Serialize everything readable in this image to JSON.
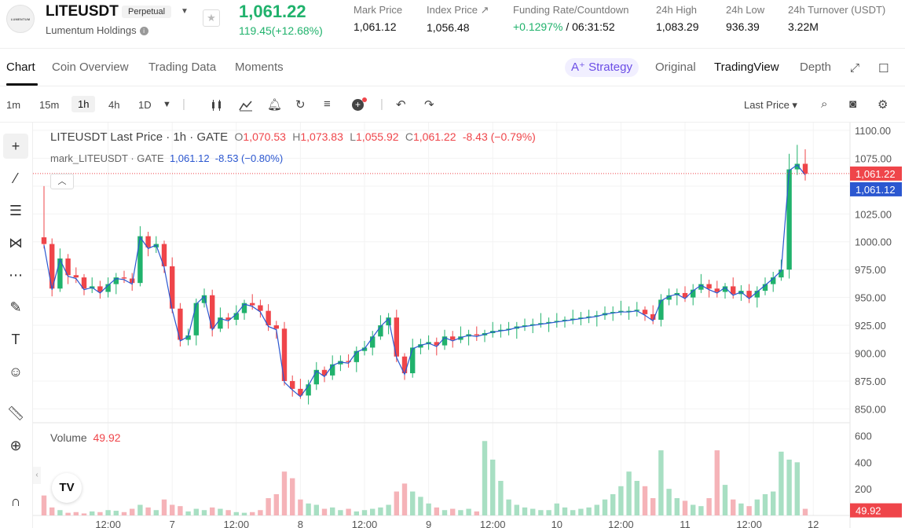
{
  "header": {
    "logo_text": "LUMENTUM",
    "symbol": "LITEUSDT",
    "badge": "Perpetual",
    "company": "Lumentum Holdings",
    "last_price": "1,061.22",
    "change": "119.45(+12.68%)",
    "stats": [
      {
        "label": "Mark Price",
        "value": "1,061.12"
      },
      {
        "label": "Index Price ↗",
        "value": "1,056.48"
      },
      {
        "label": "Funding Rate/Countdown",
        "value_green": "+0.1297%",
        "value": " / 06:31:52"
      },
      {
        "label": "24h High",
        "value": "1,083.29"
      },
      {
        "label": "24h Low",
        "value": "936.39"
      },
      {
        "label": "24h Turnover (USDT)",
        "value": "3.22M"
      }
    ]
  },
  "tabs": {
    "left": [
      "Chart",
      "Coin Overview",
      "Trading Data",
      "Moments"
    ],
    "strategy": "A⁺ Strategy",
    "right": [
      "Original",
      "TradingView",
      "Depth"
    ]
  },
  "toolbar": {
    "timeframes": [
      "1m",
      "15m",
      "1h",
      "4h",
      "1D"
    ],
    "price_select": "Last Price ▾"
  },
  "legend": {
    "title": "LITEUSDT Last Price · 1h · GATE",
    "o_label": "O",
    "o": "1,070.53",
    "h_label": "H",
    "h": "1,073.83",
    "l_label": "L",
    "l": "1,055.92",
    "c_label": "C",
    "c": "1,061.22",
    "chg": "-8.43 (−0.79%)",
    "mark_title": "mark_LITEUSDT · GATE",
    "mark_value": "1,061.12",
    "mark_chg": "-8.53 (−0.80%)",
    "volume_label": "Volume",
    "volume_value": "49.92"
  },
  "chart_data": {
    "type": "candlestick",
    "price_axis": {
      "ticks": [
        1100,
        1075,
        1050,
        1025,
        1000,
        975,
        950,
        925,
        900,
        875,
        850
      ],
      "range": [
        839,
        1107
      ]
    },
    "volume_axis": {
      "ticks": [
        600,
        400,
        200
      ],
      "range": [
        0,
        680
      ]
    },
    "time_labels": [
      {
        "label": "12:00",
        "index": 8
      },
      {
        "label": "7",
        "index": 16
      },
      {
        "label": "12:00",
        "index": 24
      },
      {
        "label": "8",
        "index": 32
      },
      {
        "label": "12:00",
        "index": 40
      },
      {
        "label": "9",
        "index": 48
      },
      {
        "label": "12:00",
        "index": 56
      },
      {
        "label": "10",
        "index": 64
      },
      {
        "label": "12:00",
        "index": 72
      },
      {
        "label": "11",
        "index": 80
      },
      {
        "label": "12:00",
        "index": 88
      },
      {
        "label": "12",
        "index": 96
      }
    ],
    "last_price_tag": "1,061.22",
    "last_price_value": 1061.22,
    "mark_price_tag": "1,061.12",
    "mark_price_value": 1061.12,
    "volume_tag": "49.92",
    "volume_tag_value": 49.92,
    "closes": [
      998,
      958,
      985,
      970,
      968,
      958,
      960,
      955,
      962,
      968,
      967,
      963,
      1005,
      995,
      998,
      978,
      940,
      912,
      916,
      945,
      952,
      922,
      932,
      930,
      936,
      945,
      943,
      938,
      925,
      922,
      875,
      868,
      862,
      872,
      885,
      880,
      890,
      893,
      892,
      902,
      905,
      915,
      925,
      932,
      897,
      882,
      905,
      908,
      910,
      907,
      915,
      912,
      915,
      917,
      916,
      918,
      920,
      921,
      922,
      924,
      925,
      926,
      927,
      928,
      929,
      930,
      931,
      932,
      933,
      934,
      936,
      937,
      938,
      938,
      939,
      935,
      930,
      948,
      952,
      954,
      950,
      957,
      962,
      958,
      955,
      960,
      953,
      956,
      950,
      956,
      962,
      968,
      975,
      1065,
      1070,
      1061
    ],
    "volumes": [
      150,
      60,
      40,
      20,
      25,
      15,
      30,
      25,
      40,
      35,
      25,
      50,
      80,
      60,
      40,
      120,
      80,
      70,
      30,
      50,
      40,
      60,
      50,
      40,
      25,
      20,
      25,
      40,
      130,
      160,
      330,
      280,
      120,
      90,
      80,
      50,
      60,
      40,
      50,
      30,
      40,
      50,
      60,
      80,
      180,
      240,
      180,
      140,
      90,
      60,
      40,
      50,
      40,
      50,
      30,
      560,
      420,
      260,
      120,
      80,
      60,
      50,
      40,
      40,
      90,
      60,
      40,
      50,
      60,
      80,
      120,
      160,
      220,
      330,
      260,
      220,
      130,
      490,
      200,
      130,
      110,
      80,
      70,
      130,
      490,
      230,
      120,
      90,
      70,
      120,
      160,
      180,
      480,
      420,
      400,
      49.92
    ]
  },
  "colors": {
    "up": "#20b26c",
    "down": "#ef454a",
    "up_vol": "#a8dfc3",
    "down_vol": "#f5b3b8",
    "mark": "#2b57d0"
  }
}
